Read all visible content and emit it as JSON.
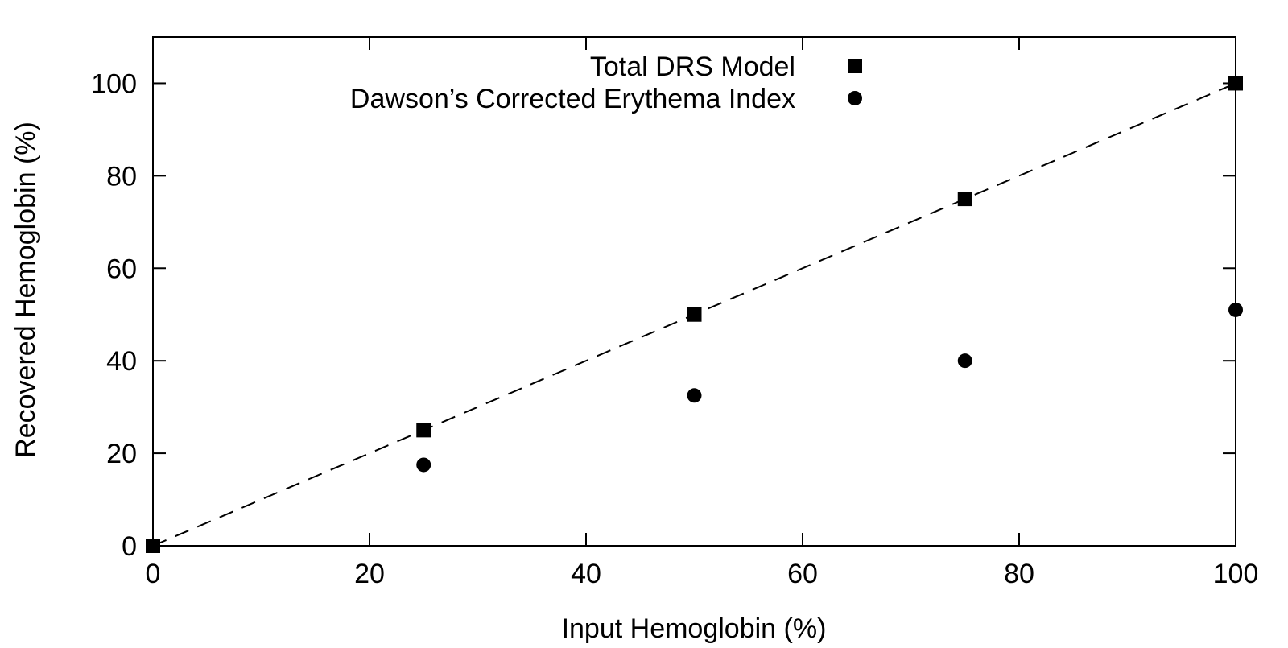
{
  "chart_data": {
    "type": "scatter",
    "title": "",
    "xlabel": "Input Hemoglobin (%)",
    "ylabel": "Recovered Hemoglobin (%)",
    "xlim": [
      0,
      100
    ],
    "ylim": [
      0,
      110
    ],
    "x_ticks": [
      0,
      20,
      40,
      60,
      80,
      100
    ],
    "y_ticks": [
      0,
      20,
      40,
      60,
      80,
      100
    ],
    "grid": false,
    "legend_position": "top-center",
    "series": [
      {
        "name": "Total DRS Model",
        "marker": "square",
        "color": "#000000",
        "x": [
          0,
          25,
          50,
          75,
          100
        ],
        "y": [
          0,
          25,
          50,
          75,
          100
        ]
      },
      {
        "name": "Dawson’s Corrected Erythema Index",
        "marker": "circle",
        "color": "#000000",
        "x": [
          25,
          50,
          75,
          100
        ],
        "y": [
          17.5,
          32.5,
          40,
          51
        ]
      }
    ],
    "reference_line": {
      "style": "dashed",
      "color": "#000000",
      "x": [
        0,
        100
      ],
      "y": [
        0,
        100
      ]
    }
  }
}
